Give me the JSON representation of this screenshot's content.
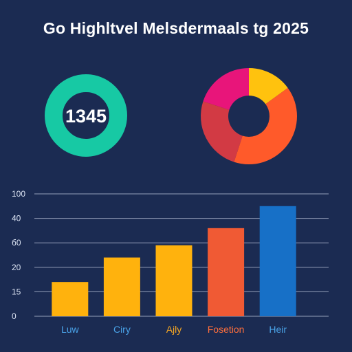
{
  "colors": {
    "background": "#1b2b52",
    "ring": "#17c9a4",
    "gridline": "#c9d2e6",
    "axis_text": "#dbe3f3"
  },
  "chart_data": [
    {
      "type": "bar",
      "title": "Go Highltvel Melsdermaals tg 2025",
      "ytick_labels": [
        "0",
        "15",
        "20",
        "б0",
        "40",
        "100"
      ],
      "ylim": [
        0,
        100
      ],
      "grid": true,
      "categories": [
        "Luw",
        "Ciry",
        "Ajly",
        "Fosetion",
        "Heir"
      ],
      "values": [
        28,
        48,
        58,
        72,
        90
      ],
      "bar_colors": [
        "#ffb20d",
        "#ffb20d",
        "#ffb20d",
        "#f05a34",
        "#1770c7"
      ],
      "category_label_colors": [
        "#4aa3e8",
        "#4aa3e8",
        "#f5a623",
        "#ff6f3c",
        "#4aa3e8"
      ]
    },
    {
      "type": "pie",
      "style": "donut",
      "slices": [
        {
          "value": 15,
          "color": "#ffc20e"
        },
        {
          "value": 40,
          "color": "#ff5a2a"
        },
        {
          "value": 25,
          "color": "#d23a44"
        },
        {
          "value": 20,
          "color": "#e8157a"
        }
      ]
    },
    {
      "type": "gauge",
      "style": "ring",
      "center_text": "1345"
    }
  ]
}
